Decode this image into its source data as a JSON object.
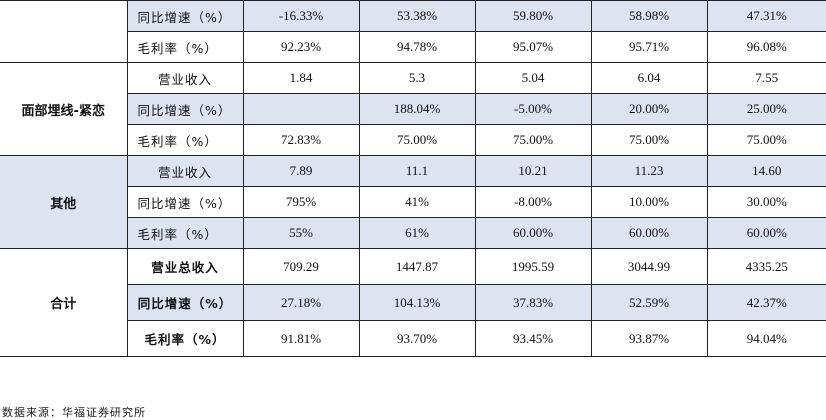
{
  "rows": [
    {
      "metric": "同比增速（%）",
      "values": [
        "-16.33%",
        "53.38%",
        "59.80%",
        "58.98%",
        "47.31%"
      ]
    },
    {
      "metric": "毛利率（%）",
      "values": [
        "92.23%",
        "94.78%",
        "95.07%",
        "95.71%",
        "96.08%"
      ]
    },
    {
      "metric": "营业收入",
      "values": [
        "1.84",
        "5.3",
        "5.04",
        "6.04",
        "7.55"
      ]
    },
    {
      "metric": "同比增速（%）",
      "values": [
        "",
        "188.04%",
        "-5.00%",
        "20.00%",
        "25.00%"
      ]
    },
    {
      "metric": "毛利率（%）",
      "values": [
        "72.83%",
        "75.00%",
        "75.00%",
        "75.00%",
        "75.00%"
      ]
    },
    {
      "metric": "营业收入",
      "values": [
        "7.89",
        "11.1",
        "10.21",
        "11.23",
        "14.60"
      ]
    },
    {
      "metric": "同比增速（%）",
      "values": [
        "795%",
        "41%",
        "-8.00%",
        "10.00%",
        "30.00%"
      ]
    },
    {
      "metric": "毛利率（%）",
      "values": [
        "55%",
        "61%",
        "60.00%",
        "60.00%",
        "60.00%"
      ]
    },
    {
      "metric": "营业总收入",
      "values": [
        "709.29",
        "1447.87",
        "1995.59",
        "3044.99",
        "4335.25"
      ]
    },
    {
      "metric": "同比增速（%）",
      "values": [
        "27.18%",
        "104.13%",
        "37.83%",
        "52.59%",
        "42.37%"
      ]
    },
    {
      "metric": "毛利率（%）",
      "values": [
        "91.81%",
        "93.70%",
        "93.45%",
        "93.87%",
        "94.04%"
      ]
    }
  ],
  "groups": [
    "",
    "面部埋线-紧恋",
    "其他",
    "合计"
  ],
  "source": "数据来源：华福证券研究所"
}
